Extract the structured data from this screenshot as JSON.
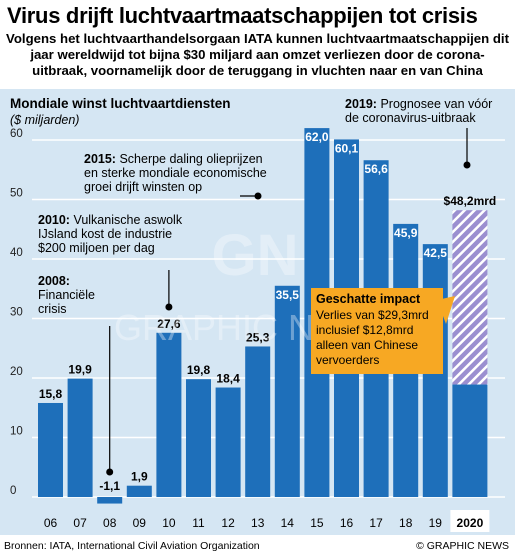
{
  "title": "Virus drijft luchtvaartmaatschappijen tot crisis",
  "subtitle": "Volgens het luchtvaarthandelsorgaan IATA kunnen luchtvaartmaatschappijen dit jaar wereldwijd tot bijna $30 miljard aan omzet verliezen door de corona-uitbraak, voornamelijk door de teruggang in vluchten naar en van China",
  "chart_data": {
    "type": "bar",
    "title": "Mondiale winst luchtvaartdiensten",
    "ylabel": "($ miljarden)",
    "categories": [
      "06",
      "07",
      "08",
      "09",
      "10",
      "11",
      "12",
      "13",
      "14",
      "15",
      "16",
      "17",
      "18",
      "19",
      "2020"
    ],
    "values": [
      15.8,
      19.9,
      -1.1,
      1.9,
      27.6,
      19.8,
      18.4,
      25.3,
      35.5,
      62.0,
      60.1,
      56.6,
      45.9,
      42.5,
      48.2
    ],
    "value_labels": [
      "15,8",
      "19,9",
      "-1,1",
      "1,9",
      "27,6",
      "19,8",
      "18,4",
      "25,3",
      "35,5",
      "62,0",
      "60,1",
      "56,6",
      "45,9",
      "42,5",
      "$48,2mrd"
    ],
    "estimated_impact_2020": 29.3,
    "remaining_2020": 18.9,
    "yticks": [
      0,
      10,
      20,
      30,
      40,
      50,
      60
    ],
    "ylim": [
      -3,
      63
    ],
    "grid": true,
    "colors": {
      "bar": "#1e6fba",
      "impact": "#9b8fd0",
      "impact_stripe": "#ffffff",
      "background": "#d5e6f3",
      "highlight_box": "#f7a823",
      "grid": "#ffffff"
    },
    "annotations": [
      {
        "year_label": "2008:",
        "text": "Financiële crisis",
        "category": "08"
      },
      {
        "year_label": "2010:",
        "text": "Vulkanische aswolk IJsland kost de industrie $200 miljoen per dag",
        "category": "10"
      },
      {
        "year_label": "2015:",
        "text": "Scherpe daling olieprijzen en sterke mondiale economische groei drijft winsten op",
        "category": "15"
      },
      {
        "year_label": "2019:",
        "text": "Prognosee van vóór de coronavirus-uitbraak",
        "category": "2020"
      }
    ],
    "impact_box": {
      "title": "Geschatte impact",
      "lines": [
        "Verlies van $29,3mrd",
        "inclusief $12,8mrd",
        "alleen van Chinese",
        "vervoerders"
      ]
    }
  },
  "footer": {
    "source": "Bronnen: IATA, International Civil Aviation Organization",
    "credit": "© GRAPHIC NEWS"
  },
  "watermark": "GRAPHIC NEWS"
}
